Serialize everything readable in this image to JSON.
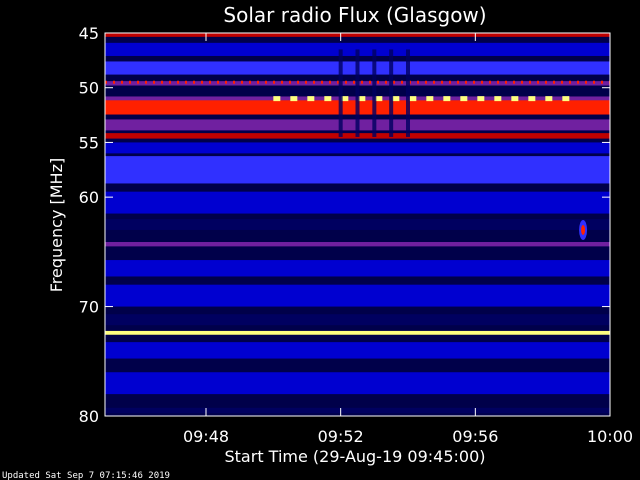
{
  "chart_data": {
    "type": "heatmap",
    "title": "Solar radio Flux (Glasgow)",
    "ylabel": "Frequency [MHz]",
    "xlabel": "Start Time (29-Aug-19 09:45:00)",
    "footer": "Updated Sat Sep  7 07:15:46 2019",
    "x_axis": {
      "unit": "time",
      "range": [
        "09:45",
        "10:00"
      ],
      "ticks": [
        "09:48",
        "09:52",
        "09:56",
        "10:00"
      ]
    },
    "y_axis": {
      "unit": "MHz",
      "range": [
        45,
        80
      ],
      "inverted": true,
      "ticks": [
        45,
        50,
        55,
        60,
        70,
        80
      ]
    },
    "colormap": [
      "#000000",
      "#000060",
      "#0000d0",
      "#3030ff",
      "#7020a0",
      "#c00000",
      "#ff2000",
      "#ff9000",
      "#ffff80",
      "#ffffff"
    ],
    "bands": [
      {
        "mhz": 45.2,
        "width": 0.3,
        "level": 5
      },
      {
        "mhz": 46.5,
        "width": 1.2,
        "level": 2
      },
      {
        "mhz": 48.2,
        "width": 1.2,
        "level": 3
      },
      {
        "mhz": 49.6,
        "width": 0.4,
        "level": 4
      },
      {
        "mhz": 51.0,
        "width": 0.4,
        "level": 4
      },
      {
        "mhz": 51.8,
        "width": 1.3,
        "level": 6
      },
      {
        "mhz": 53.4,
        "width": 1.0,
        "level": 4
      },
      {
        "mhz": 54.4,
        "width": 0.5,
        "level": 5
      },
      {
        "mhz": 55.5,
        "width": 1.0,
        "level": 2
      },
      {
        "mhz": 57.5,
        "width": 2.5,
        "level": 3
      },
      {
        "mhz": 60.5,
        "width": 2.0,
        "level": 2
      },
      {
        "mhz": 62.5,
        "width": 1.0,
        "level": 1
      },
      {
        "mhz": 64.3,
        "width": 0.4,
        "level": 4
      },
      {
        "mhz": 66.5,
        "width": 1.5,
        "level": 2
      },
      {
        "mhz": 69.0,
        "width": 2.0,
        "level": 2
      },
      {
        "mhz": 71.2,
        "width": 1.0,
        "level": 1
      },
      {
        "mhz": 72.4,
        "width": 0.35,
        "level": 8
      },
      {
        "mhz": 74.0,
        "width": 1.5,
        "level": 2
      },
      {
        "mhz": 77.0,
        "width": 2.0,
        "level": 2
      },
      {
        "mhz": 79.5,
        "width": 0.5,
        "level": 1
      }
    ],
    "features": [
      {
        "kind": "dotted-line",
        "mhz": 49.5,
        "from": "09:45",
        "to": "10:00",
        "level": 6
      },
      {
        "kind": "dashed-line",
        "mhz": 51.0,
        "from": "09:50",
        "to": "09:59",
        "level": 8
      },
      {
        "kind": "vertical-streaks",
        "mhz_range": [
          46.5,
          54.5
        ],
        "times": [
          "09:52",
          "09:52.5",
          "09:53",
          "09:53.5",
          "09:54"
        ],
        "level": 1
      },
      {
        "kind": "spot",
        "time": "09:59.2",
        "mhz": 63.0,
        "level": 6
      }
    ]
  }
}
